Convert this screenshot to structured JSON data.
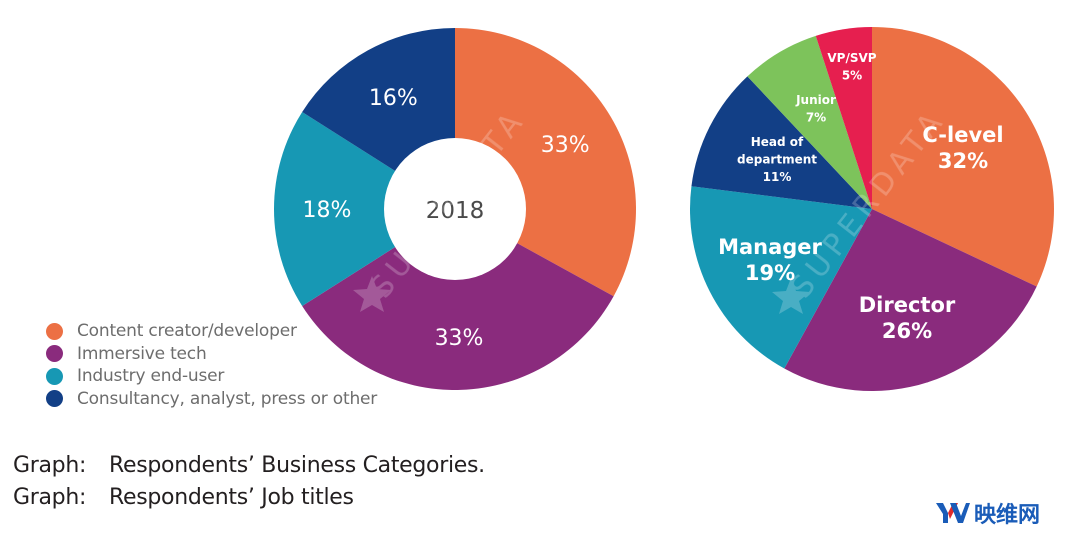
{
  "chart_data": [
    {
      "type": "pie",
      "variant": "donut",
      "title": "Respondents' Business Categories",
      "center_label": "2018",
      "start": "12 o'clock, clockwise",
      "slices": [
        {
          "label": "Content creator/developer",
          "value": 33,
          "display": "33%",
          "color": "#ec7044"
        },
        {
          "label": "Immersive tech",
          "value": 33,
          "display": "33%",
          "color": "#8a2b7d"
        },
        {
          "label": "Industry end-user",
          "value": 18,
          "display": "18%",
          "color": "#1798b4"
        },
        {
          "label": "Consultancy, analyst, press or other",
          "value": 16,
          "display": "16%",
          "color": "#123f86"
        }
      ],
      "legend_position": "bottom-left"
    },
    {
      "type": "pie",
      "title": "Respondents' Job titles",
      "start": "12 o'clock, clockwise",
      "slices": [
        {
          "label": "C-level",
          "lines": [
            "C-level",
            "32%"
          ],
          "value": 32,
          "display": "32%",
          "color": "#ec7044",
          "size": "large"
        },
        {
          "label": "Director",
          "lines": [
            "Director",
            "26%"
          ],
          "value": 26,
          "display": "26%",
          "color": "#8a2b7d",
          "size": "large"
        },
        {
          "label": "Manager",
          "lines": [
            "Manager",
            "19%"
          ],
          "value": 19,
          "display": "19%",
          "color": "#1798b4",
          "size": "large"
        },
        {
          "label": "Head of department",
          "lines": [
            "Head of",
            "department",
            "11%"
          ],
          "value": 11,
          "display": "11%",
          "color": "#123f86",
          "size": "small"
        },
        {
          "label": "Junior",
          "lines": [
            "Junior",
            "7%"
          ],
          "value": 7,
          "display": "7%",
          "color": "#7dc35b",
          "size": "small"
        },
        {
          "label": "VP/SVP",
          "lines": [
            "VP/SVP",
            "5%"
          ],
          "value": 5,
          "display": "5%",
          "color": "#e61f4f",
          "size": "small"
        }
      ],
      "legend_position": "none (labels on slices)"
    }
  ],
  "legend": [
    {
      "label": "Content creator/developer",
      "color": "#ec7044"
    },
    {
      "label": "Immersive tech",
      "color": "#8a2b7d"
    },
    {
      "label": "Industry end-user",
      "color": "#1798b4"
    },
    {
      "label": "Consultancy, analyst, press or other",
      "color": "#123f86"
    }
  ],
  "watermark": "SUPERDATA",
  "captions": [
    {
      "key": "Graph:",
      "text": "Respondents’ Business Categories."
    },
    {
      "key": "Graph:",
      "text": "Respondents’ Job titles"
    }
  ],
  "brand": {
    "logo_text": "YV",
    "name": "映维网",
    "color": "#1a5cb8",
    "accent": "#e02b2b"
  }
}
